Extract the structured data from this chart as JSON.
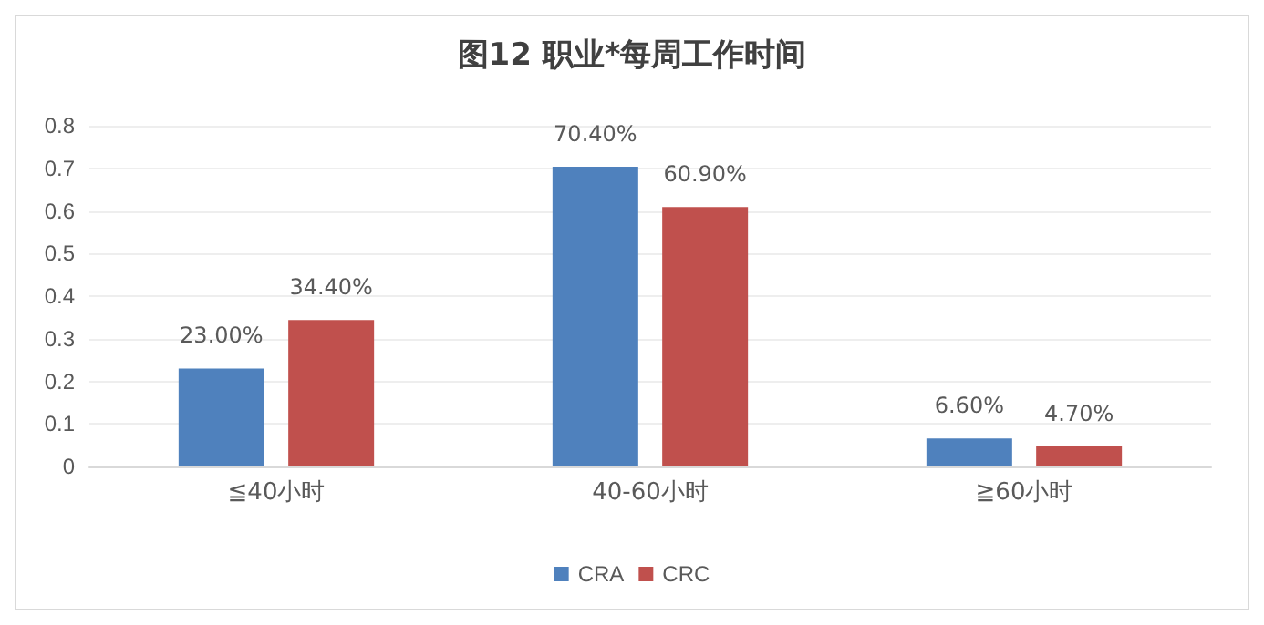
{
  "chart_data": {
    "type": "bar",
    "title": "图12 职业*每周工作时间",
    "categories": [
      "≦40小时",
      "40-60小时",
      "≧60小时"
    ],
    "series": [
      {
        "name": "CRA",
        "color": "#4f81bd",
        "values": [
          0.23,
          0.704,
          0.066
        ],
        "value_labels": [
          "23.00%",
          "70.40%",
          "6.60%"
        ]
      },
      {
        "name": "CRC",
        "color": "#c0504d",
        "values": [
          0.344,
          0.609,
          0.047
        ],
        "value_labels": [
          "34.40%",
          "60.90%",
          "4.70%"
        ]
      }
    ],
    "ylim": [
      0,
      0.8
    ],
    "yticks": [
      0,
      0.1,
      0.2,
      0.3,
      0.4,
      0.5,
      0.6,
      0.7,
      0.8
    ],
    "grid": "y",
    "legend": "bottom"
  }
}
